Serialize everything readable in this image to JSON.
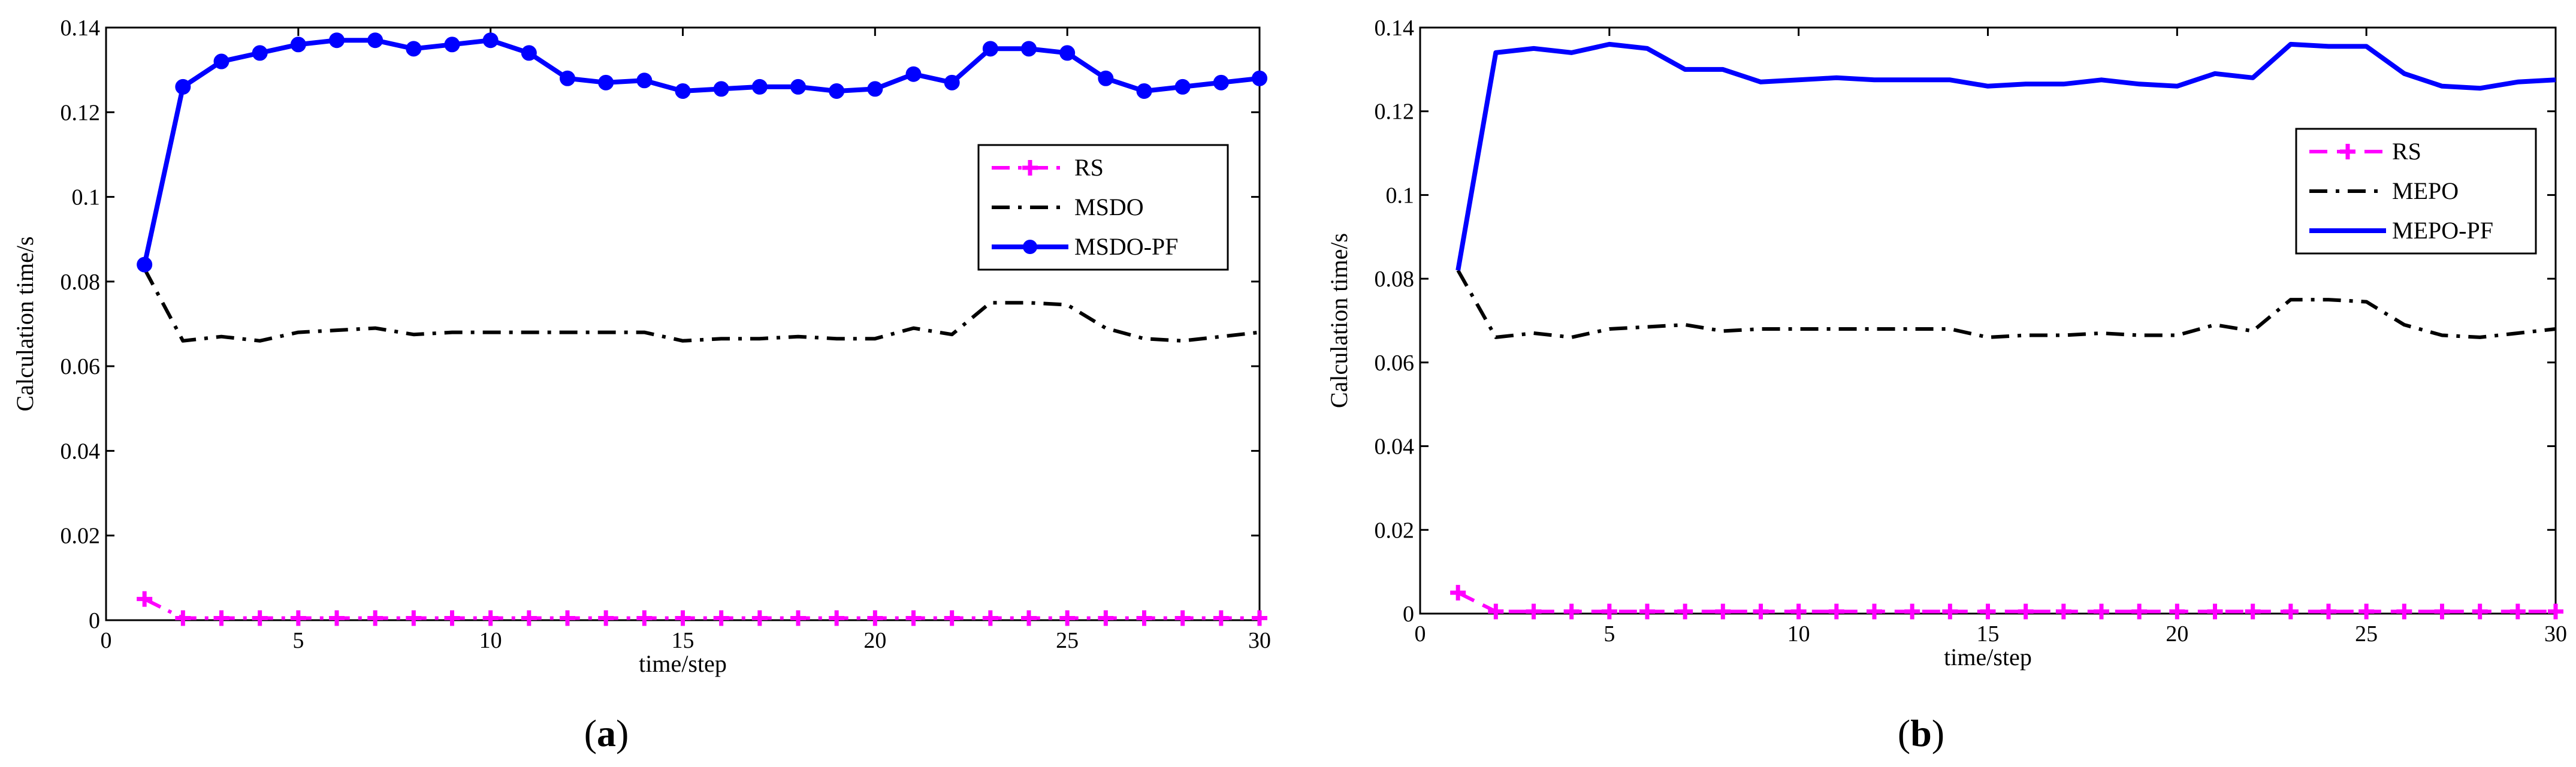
{
  "chart_data": [
    {
      "type": "line",
      "panel_label": "a",
      "title": "",
      "xlabel": "time/step",
      "ylabel": "Calculation time/s",
      "xlim": [
        0,
        30
      ],
      "ylim": [
        0,
        0.14
      ],
      "xticks": [
        0,
        5,
        10,
        15,
        20,
        25,
        30
      ],
      "xtick_labels": [
        "0",
        "5",
        "10",
        "15",
        "20",
        "25",
        "30"
      ],
      "yticks": [
        0,
        0.02,
        0.04,
        0.06,
        0.08,
        0.1,
        0.12,
        0.14
      ],
      "ytick_labels": [
        "0",
        "0.02",
        "0.04",
        "0.06",
        "0.08",
        "0.1",
        "0.12",
        "0.14"
      ],
      "grid": false,
      "legend_position": "right",
      "x": [
        1,
        2,
        3,
        4,
        5,
        6,
        7,
        8,
        9,
        10,
        11,
        12,
        13,
        14,
        15,
        16,
        17,
        18,
        19,
        20,
        21,
        22,
        23,
        24,
        25,
        26,
        27,
        28,
        29,
        30
      ],
      "series": [
        {
          "name": "RS",
          "color": "#ff00ff",
          "style": "dash-dot",
          "marker": "plus",
          "values": [
            0.005,
            0.0005,
            0.0005,
            0.0005,
            0.0005,
            0.0005,
            0.0005,
            0.0005,
            0.0005,
            0.0005,
            0.0005,
            0.0005,
            0.0005,
            0.0005,
            0.0005,
            0.0005,
            0.0005,
            0.0005,
            0.0005,
            0.0005,
            0.0005,
            0.0005,
            0.0005,
            0.0005,
            0.0005,
            0.0005,
            0.0005,
            0.0005,
            0.0005,
            0.0005
          ]
        },
        {
          "name": "MSDO",
          "color": "#000000",
          "style": "dash-dot",
          "marker": "none",
          "values": [
            0.083,
            0.066,
            0.067,
            0.066,
            0.068,
            0.0685,
            0.069,
            0.0675,
            0.068,
            0.068,
            0.068,
            0.068,
            0.068,
            0.068,
            0.066,
            0.0665,
            0.0665,
            0.067,
            0.0665,
            0.0665,
            0.069,
            0.0675,
            0.075,
            0.075,
            0.0745,
            0.069,
            0.0665,
            0.066,
            0.067,
            0.068
          ]
        },
        {
          "name": "MSDO-PF",
          "color": "#0000ff",
          "style": "solid",
          "marker": "dot",
          "values": [
            0.084,
            0.126,
            0.132,
            0.134,
            0.136,
            0.137,
            0.137,
            0.135,
            0.136,
            0.137,
            0.134,
            0.128,
            0.127,
            0.1275,
            0.125,
            0.1255,
            0.126,
            0.126,
            0.125,
            0.1255,
            0.129,
            0.127,
            0.135,
            0.135,
            0.134,
            0.128,
            0.125,
            0.126,
            0.127,
            0.128
          ]
        }
      ]
    },
    {
      "type": "line",
      "panel_label": "b",
      "title": "",
      "xlabel": "time/step",
      "ylabel": "Calculation time/s",
      "xlim": [
        0,
        30
      ],
      "ylim": [
        0,
        0.14
      ],
      "xticks": [
        0,
        5,
        10,
        15,
        20,
        25,
        30
      ],
      "xtick_labels": [
        "0",
        "5",
        "10",
        "15",
        "20",
        "25",
        "30"
      ],
      "yticks": [
        0,
        0.02,
        0.04,
        0.06,
        0.08,
        0.1,
        0.12,
        0.14
      ],
      "ytick_labels": [
        "0",
        "0.02",
        "0.04",
        "0.06",
        "0.08",
        "0.1",
        "0.12",
        "0.14"
      ],
      "grid": false,
      "legend_position": "top-right",
      "x": [
        1,
        2,
        3,
        4,
        5,
        6,
        7,
        8,
        9,
        10,
        11,
        12,
        13,
        14,
        15,
        16,
        17,
        18,
        19,
        20,
        21,
        22,
        23,
        24,
        25,
        26,
        27,
        28,
        29,
        30
      ],
      "series": [
        {
          "name": "RS",
          "color": "#ff00ff",
          "style": "dashed",
          "marker": "plus",
          "values": [
            0.005,
            0.0005,
            0.0005,
            0.0005,
            0.0005,
            0.0005,
            0.0005,
            0.0005,
            0.0005,
            0.0005,
            0.0005,
            0.0005,
            0.0005,
            0.0005,
            0.0005,
            0.0005,
            0.0005,
            0.0005,
            0.0005,
            0.0005,
            0.0005,
            0.0005,
            0.0005,
            0.0005,
            0.0005,
            0.0005,
            0.0005,
            0.0005,
            0.0005,
            0.0005
          ]
        },
        {
          "name": "MEPO",
          "color": "#000000",
          "style": "dash-dot",
          "marker": "none",
          "values": [
            0.082,
            0.066,
            0.067,
            0.066,
            0.068,
            0.0685,
            0.069,
            0.0675,
            0.068,
            0.068,
            0.068,
            0.068,
            0.068,
            0.068,
            0.066,
            0.0665,
            0.0665,
            0.067,
            0.0665,
            0.0665,
            0.069,
            0.0675,
            0.075,
            0.075,
            0.0745,
            0.069,
            0.0665,
            0.066,
            0.067,
            0.068
          ]
        },
        {
          "name": "MEPO-PF",
          "color": "#0000ff",
          "style": "solid",
          "marker": "none",
          "values": [
            0.082,
            0.134,
            0.135,
            0.134,
            0.136,
            0.135,
            0.13,
            0.13,
            0.127,
            0.1275,
            0.128,
            0.1275,
            0.1275,
            0.1275,
            0.126,
            0.1265,
            0.1265,
            0.1275,
            0.1265,
            0.126,
            0.129,
            0.128,
            0.136,
            0.1355,
            0.1355,
            0.129,
            0.126,
            0.1255,
            0.127,
            0.1275
          ]
        }
      ]
    }
  ]
}
